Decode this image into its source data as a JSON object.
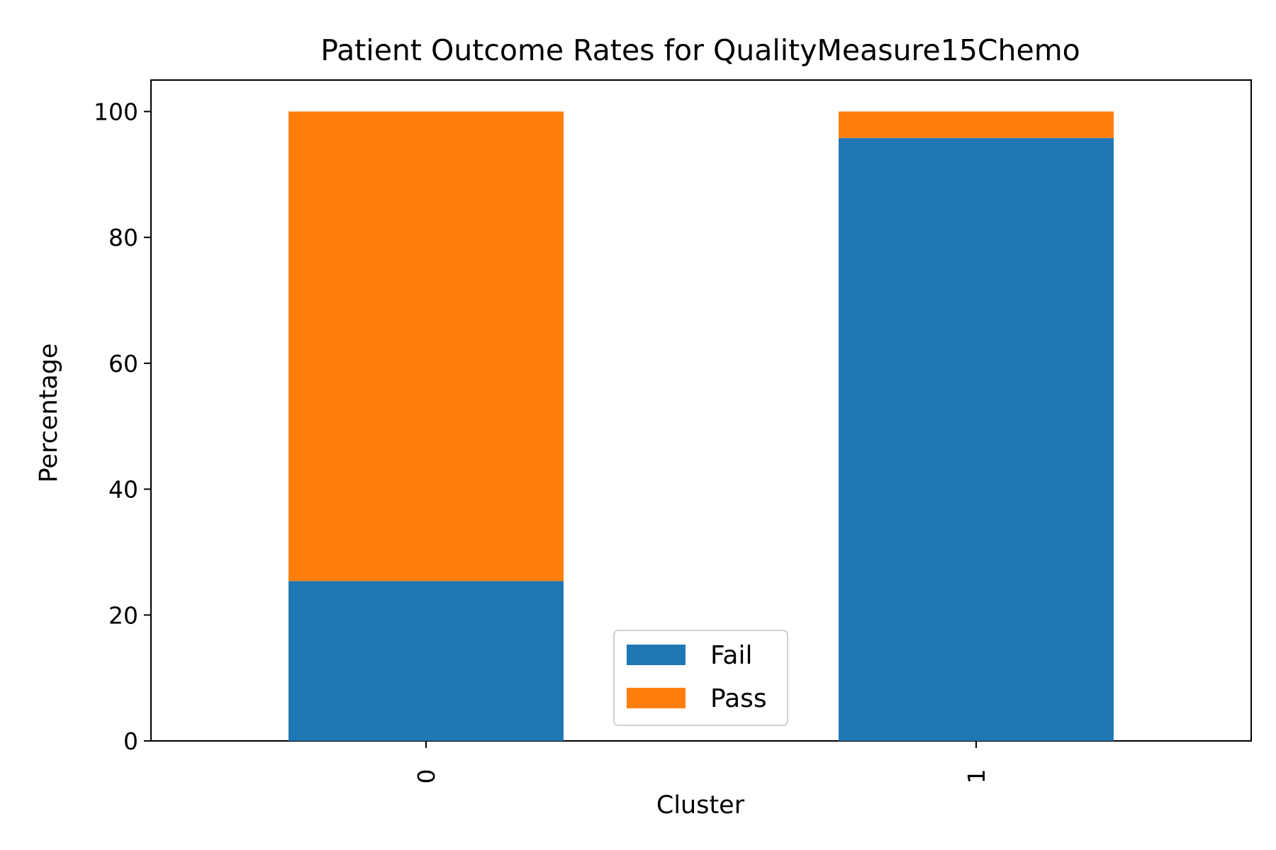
{
  "chart_data": {
    "type": "bar",
    "stacked": true,
    "title": "Patient Outcome Rates for QualityMeasure15Chemo",
    "xlabel": "Cluster",
    "ylabel": "Percentage",
    "categories": [
      "0",
      "1"
    ],
    "series": [
      {
        "name": "Fail",
        "values": [
          25.4,
          95.8
        ],
        "color": "#1f77b4"
      },
      {
        "name": "Pass",
        "values": [
          74.6,
          4.2
        ],
        "color": "#ff7f0e"
      }
    ],
    "ylim": [
      0,
      105
    ],
    "yticks": [
      0,
      20,
      40,
      60,
      80,
      100
    ],
    "grid": false,
    "legend_position": "bottom-center"
  }
}
